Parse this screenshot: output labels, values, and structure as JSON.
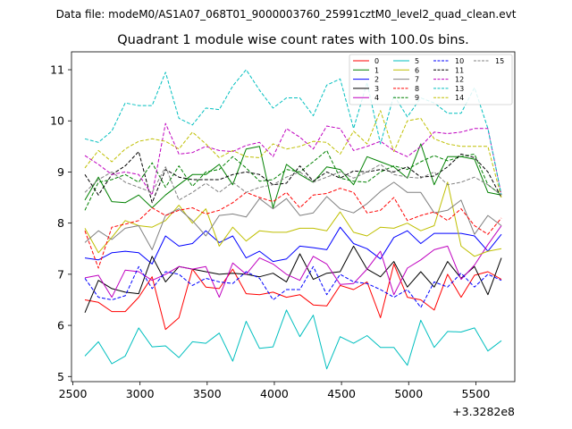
{
  "header_text": "Data file: modeM0/AS1A07_068T01_9000003760_25991cztM0_level2_quad_clean.evt",
  "chart_data": {
    "type": "line",
    "title": "Quadrant 1 module wise count rates with 100.0s bins.",
    "xlabel": "",
    "ylabel": "",
    "x_offset_label": "+3.3282e8",
    "xlim": [
      2490,
      5790
    ],
    "ylim": [
      4.9,
      11.35
    ],
    "xticks": [
      2500,
      3000,
      3500,
      4000,
      4500,
      5000,
      5500
    ],
    "yticks": [
      5,
      6,
      7,
      8,
      9,
      10,
      11
    ],
    "grid": false,
    "legend_position": "top-right",
    "x": [
      2590,
      2690,
      2790,
      2890,
      2990,
      3090,
      3190,
      3290,
      3390,
      3490,
      3590,
      3690,
      3790,
      3890,
      3990,
      4090,
      4190,
      4290,
      4390,
      4490,
      4590,
      4690,
      4790,
      4890,
      4990,
      5090,
      5190,
      5290,
      5390,
      5490,
      5590,
      5690
    ],
    "series": [
      {
        "name": "0",
        "color": "#ff0000",
        "dash": "solid",
        "values": [
          6.5,
          6.45,
          6.27,
          6.27,
          6.55,
          6.95,
          5.92,
          6.15,
          7.1,
          6.75,
          6.72,
          7.1,
          6.62,
          6.6,
          6.65,
          6.55,
          6.6,
          6.4,
          6.38,
          6.78,
          6.7,
          6.85,
          6.15,
          7.2,
          6.55,
          6.5,
          6.3,
          7.0,
          6.55,
          6.98,
          7.05,
          6.9
        ]
      },
      {
        "name": "1",
        "color": "#008000",
        "dash": "solid",
        "values": [
          8.45,
          8.9,
          8.42,
          8.4,
          8.55,
          8.3,
          8.55,
          8.75,
          8.95,
          8.95,
          9.15,
          8.75,
          9.45,
          9.5,
          8.3,
          9.15,
          8.95,
          8.8,
          9.1,
          9.05,
          8.75,
          9.3,
          9.2,
          9.1,
          8.88,
          9.55,
          8.75,
          9.3,
          9.3,
          9.25,
          8.6,
          8.55
        ]
      },
      {
        "name": "2",
        "color": "#0000ff",
        "dash": "solid",
        "values": [
          7.32,
          7.28,
          7.42,
          7.45,
          7.42,
          7.2,
          7.75,
          7.55,
          7.6,
          7.85,
          7.62,
          7.75,
          7.32,
          7.45,
          7.25,
          7.3,
          7.55,
          7.52,
          7.48,
          7.92,
          7.6,
          7.5,
          7.3,
          7.72,
          7.85,
          7.6,
          7.8,
          7.8,
          7.8,
          7.75,
          7.45,
          7.78
        ]
      },
      {
        "name": "3",
        "color": "#000000",
        "dash": "solid",
        "values": [
          6.25,
          6.88,
          6.72,
          6.65,
          6.62,
          7.35,
          6.85,
          7.15,
          7.1,
          7.05,
          7.0,
          7.02,
          7.0,
          6.95,
          7.02,
          6.85,
          7.4,
          6.9,
          7.02,
          7.05,
          7.55,
          7.1,
          6.95,
          7.25,
          6.75,
          7.05,
          6.75,
          7.25,
          6.92,
          7.15,
          6.6,
          7.32
        ]
      },
      {
        "name": "4",
        "color": "#bf00bf",
        "dash": "solid",
        "values": [
          6.93,
          6.98,
          6.55,
          7.08,
          7.05,
          6.88,
          7.0,
          7.15,
          7.1,
          7.15,
          6.55,
          7.22,
          7.0,
          7.32,
          7.2,
          7.0,
          6.88,
          7.35,
          7.2,
          6.8,
          6.82,
          7.1,
          7.45,
          6.6,
          7.12,
          7.28,
          7.48,
          7.55,
          6.9,
          7.18,
          7.58,
          7.95
        ]
      },
      {
        "name": "5",
        "color": "#00bfbf",
        "dash": "solid",
        "values": [
          5.4,
          5.68,
          5.25,
          5.4,
          5.95,
          5.58,
          5.6,
          5.37,
          5.68,
          5.65,
          5.85,
          5.3,
          6.08,
          5.55,
          5.58,
          6.3,
          5.78,
          6.2,
          5.15,
          5.78,
          5.65,
          5.8,
          5.57,
          5.57,
          5.22,
          6.1,
          5.57,
          5.88,
          5.87,
          5.95,
          5.5,
          5.7
        ]
      },
      {
        "name": "6",
        "color": "#bfbf00",
        "dash": "solid",
        "values": [
          7.9,
          7.42,
          7.72,
          8.05,
          7.95,
          7.92,
          8.05,
          8.35,
          8.0,
          8.28,
          7.55,
          7.92,
          7.65,
          7.85,
          7.82,
          7.82,
          7.9,
          7.9,
          7.85,
          8.22,
          7.82,
          7.75,
          7.92,
          7.9,
          8.0,
          7.85,
          7.95,
          8.8,
          7.55,
          7.35,
          7.45,
          7.5
        ]
      },
      {
        "name": "7",
        "color": "#808080",
        "dash": "solid",
        "values": [
          7.62,
          7.85,
          7.68,
          7.9,
          7.95,
          7.48,
          8.15,
          8.28,
          8.05,
          7.75,
          8.15,
          8.18,
          8.12,
          8.48,
          8.28,
          8.48,
          8.15,
          8.2,
          8.52,
          8.28,
          8.2,
          8.38,
          8.62,
          8.8,
          8.6,
          8.6,
          8.2,
          8.25,
          8.45,
          7.78,
          8.15,
          7.95
        ]
      },
      {
        "name": "8",
        "color": "#ff0000",
        "dash": "dashed",
        "values": [
          7.85,
          7.12,
          7.92,
          7.98,
          8.05,
          8.3,
          8.15,
          8.25,
          8.3,
          8.18,
          8.25,
          8.4,
          8.6,
          8.5,
          8.42,
          8.6,
          8.3,
          8.55,
          8.58,
          8.68,
          8.6,
          8.2,
          8.25,
          8.5,
          8.05,
          8.15,
          8.22,
          8.05,
          8.28,
          7.95,
          7.78,
          8.1
        ]
      },
      {
        "name": "9",
        "color": "#008000",
        "dash": "dashed",
        "values": [
          8.25,
          8.8,
          8.85,
          8.95,
          8.8,
          9.18,
          8.7,
          9.12,
          8.72,
          9.0,
          9.05,
          9.3,
          9.08,
          8.82,
          8.85,
          9.05,
          9.0,
          9.2,
          9.42,
          8.88,
          8.82,
          8.8,
          9.0,
          9.12,
          9.05,
          9.2,
          9.32,
          9.22,
          9.3,
          9.35,
          8.75,
          8.55
        ]
      },
      {
        "name": "10",
        "color": "#0000ff",
        "dash": "dashed",
        "values": [
          6.92,
          6.55,
          6.5,
          6.58,
          7.15,
          6.72,
          7.05,
          7.0,
          6.78,
          6.92,
          6.85,
          6.82,
          7.05,
          6.92,
          6.5,
          6.7,
          6.7,
          7.15,
          6.6,
          7.0,
          6.85,
          6.82,
          6.7,
          6.55,
          6.7,
          6.35,
          6.85,
          6.75,
          7.02,
          6.75,
          7.0,
          6.88
        ]
      },
      {
        "name": "11",
        "color": "#000000",
        "dash": "dashed",
        "values": [
          8.95,
          8.55,
          8.95,
          9.12,
          9.4,
          8.4,
          9.05,
          8.9,
          8.85,
          8.85,
          8.85,
          8.95,
          9.0,
          8.95,
          8.75,
          8.78,
          9.12,
          8.82,
          9.0,
          8.88,
          9.02,
          9.0,
          9.05,
          9.0,
          9.1,
          8.9,
          8.92,
          9.1,
          9.35,
          9.28,
          9.0,
          8.5
        ]
      },
      {
        "name": "12",
        "color": "#bf00bf",
        "dash": "dashed",
        "values": [
          9.32,
          9.15,
          8.95,
          9.0,
          8.95,
          8.55,
          9.95,
          9.35,
          9.38,
          9.5,
          9.42,
          9.4,
          9.52,
          9.58,
          9.3,
          9.85,
          9.68,
          9.45,
          9.9,
          9.85,
          9.42,
          9.5,
          9.6,
          9.42,
          9.3,
          9.5,
          9.78,
          9.75,
          9.78,
          9.85,
          9.85,
          8.55
        ]
      },
      {
        "name": "13",
        "color": "#00bfbf",
        "dash": "dashed",
        "values": [
          9.65,
          9.58,
          9.8,
          10.35,
          10.3,
          10.3,
          10.95,
          10.05,
          9.92,
          10.25,
          10.22,
          10.68,
          11.0,
          10.6,
          10.25,
          10.45,
          10.45,
          10.1,
          10.7,
          10.82,
          9.85,
          10.75,
          9.55,
          10.5,
          10.08,
          10.45,
          10.35,
          10.15,
          10.15,
          10.65,
          9.85,
          8.55
        ]
      },
      {
        "name": "14",
        "color": "#bfbf00",
        "dash": "dashed",
        "values": [
          9.08,
          9.42,
          9.2,
          9.45,
          9.6,
          9.65,
          9.6,
          9.45,
          9.78,
          9.55,
          9.28,
          9.42,
          9.3,
          9.28,
          9.55,
          9.45,
          9.5,
          9.6,
          9.58,
          9.35,
          9.8,
          9.55,
          10.2,
          9.4,
          10.0,
          10.05,
          9.65,
          9.55,
          9.5,
          9.5,
          9.5,
          8.5
        ]
      },
      {
        "name": "15",
        "color": "#808080",
        "dash": "dashed",
        "values": [
          8.6,
          8.85,
          9.0,
          8.8,
          8.7,
          8.6,
          9.1,
          8.45,
          8.6,
          8.78,
          8.6,
          8.8,
          8.6,
          8.7,
          8.75,
          8.9,
          9.0,
          8.8,
          8.9,
          9.0,
          8.88,
          9.0,
          9.15,
          8.95,
          8.9,
          8.88,
          9.0,
          8.75,
          8.8,
          8.9,
          8.75,
          8.55
        ]
      }
    ]
  }
}
